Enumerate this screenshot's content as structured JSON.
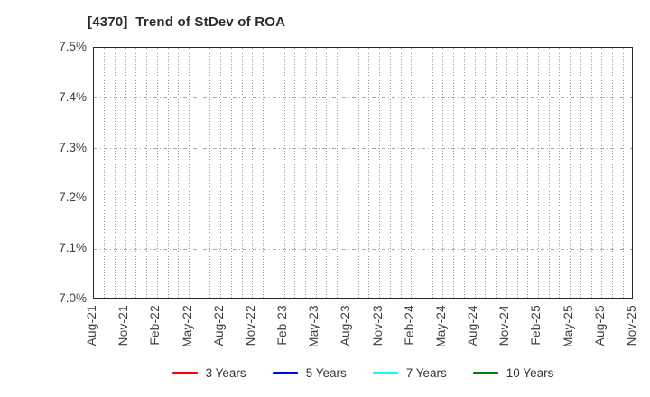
{
  "page": {
    "background": "#ffffff"
  },
  "chart_data": {
    "type": "line",
    "title": "[4370]  Trend of StDev of ROA",
    "xlabel": "",
    "ylabel": "",
    "ylim": [
      7.0,
      7.5
    ],
    "y_ticks_top_to_bottom": [
      "7.5%",
      "7.4%",
      "7.3%",
      "7.2%",
      "7.1%",
      "7.0%"
    ],
    "x_tick_labels": [
      "Aug-21",
      "Nov-21",
      "Feb-22",
      "May-22",
      "Aug-22",
      "Nov-22",
      "Feb-23",
      "May-23",
      "Aug-23",
      "Nov-23",
      "Feb-24",
      "May-24",
      "Aug-24",
      "Nov-24",
      "Feb-25",
      "May-25",
      "Aug-25",
      "Nov-25"
    ],
    "months_per_label_interval": 3,
    "total_month_intervals": 51,
    "grid": true,
    "grid_style": "dotted",
    "grid_color": "#9e9e9e",
    "frame_color": "#262626",
    "legend_position": "bottom-center",
    "series": [
      {
        "name": "3 Years",
        "color": "#ff0000",
        "values": []
      },
      {
        "name": "5 Years",
        "color": "#0000ff",
        "values": []
      },
      {
        "name": "7 Years",
        "color": "#00ffff",
        "values": []
      },
      {
        "name": "10 Years",
        "color": "#008000",
        "values": []
      }
    ]
  }
}
